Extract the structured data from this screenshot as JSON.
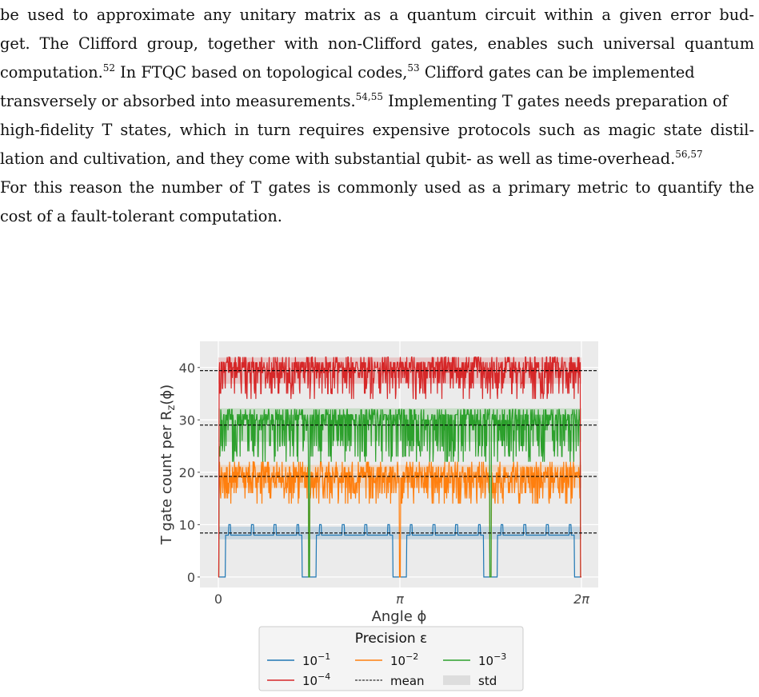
{
  "paragraph": {
    "lines": [
      {
        "text": "be used to approximate any unitary matrix as a quantum circuit within a given error bud-"
      },
      {
        "text": "get. The Clifford group, together with non-Clifford gates, enables such universal quantum"
      },
      {
        "text": "computation.",
        "sup": "52",
        "rest": " In FTQC based on topological codes,",
        "sup2": "53",
        "rest2": " Clifford gates can be implemented"
      },
      {
        "text": "transversely or absorbed into measurements.",
        "sup": "54,55",
        "rest": " Implementing T gates needs preparation of"
      },
      {
        "text": "high-fidelity T states, which in turn requires expensive protocols such as magic state distil-"
      },
      {
        "text": "lation and cultivation, and they come with substantial qubit- as well as time-overhead.",
        "sup": "56,57"
      },
      {
        "text": "For this reason the number of T gates is commonly used as a primary metric to quantify the"
      },
      {
        "text": "cost of a fault-tolerant computation."
      }
    ]
  },
  "figure": {
    "chart_data": {
      "type": "line",
      "xlabel": "Angle ϕ",
      "ylabel": "T gate count per R",
      "ylabel_sub": "z",
      "ylabel_tail": "(ϕ)",
      "xlim": [
        0,
        6.2832
      ],
      "ylim": [
        -2,
        45
      ],
      "xticks": [
        {
          "value": 0,
          "label": "0"
        },
        {
          "value": 3.1416,
          "label": "π"
        },
        {
          "value": 6.2832,
          "label": "2π"
        }
      ],
      "yticks": [
        0,
        10,
        20,
        30,
        40
      ],
      "grid": true,
      "legend": {
        "title": "Precision ε",
        "placement": "below",
        "entries": [
          {
            "label": "10",
            "exp": "−1"
          },
          {
            "label": "10",
            "exp": "−2"
          },
          {
            "label": "10",
            "exp": "−3"
          },
          {
            "label": "10",
            "exp": "−4"
          },
          {
            "label": "mean"
          },
          {
            "label": "std"
          }
        ]
      },
      "colors": {
        "eps1": "#1f77b4",
        "eps2": "#ff7f0e",
        "eps3": "#2ca02c",
        "eps4": "#d62728",
        "mean": "#000000",
        "std": "#dddddd",
        "bg": "#ebebeb"
      },
      "series": [
        {
          "key": "eps1",
          "mean": 8.4,
          "std": 1.2,
          "base": 8.4,
          "spikes_to_zero": [
            0.0,
            1.57,
            3.14,
            4.71,
            6.28
          ]
        },
        {
          "key": "eps2",
          "mean": 19.2,
          "std": 2.2,
          "base": 19.2,
          "spikes_to_zero": [
            0.0,
            1.57,
            3.14,
            4.71,
            6.28
          ]
        },
        {
          "key": "eps3",
          "mean": 29.0,
          "std": 3.2,
          "base": 29.0,
          "spikes_to_zero": [
            0.0,
            1.57,
            4.71,
            6.28
          ]
        },
        {
          "key": "eps4",
          "mean": 39.4,
          "std": 2.5,
          "base": 39.4,
          "spikes_to_zero": [
            0.0,
            6.28
          ]
        }
      ]
    }
  }
}
